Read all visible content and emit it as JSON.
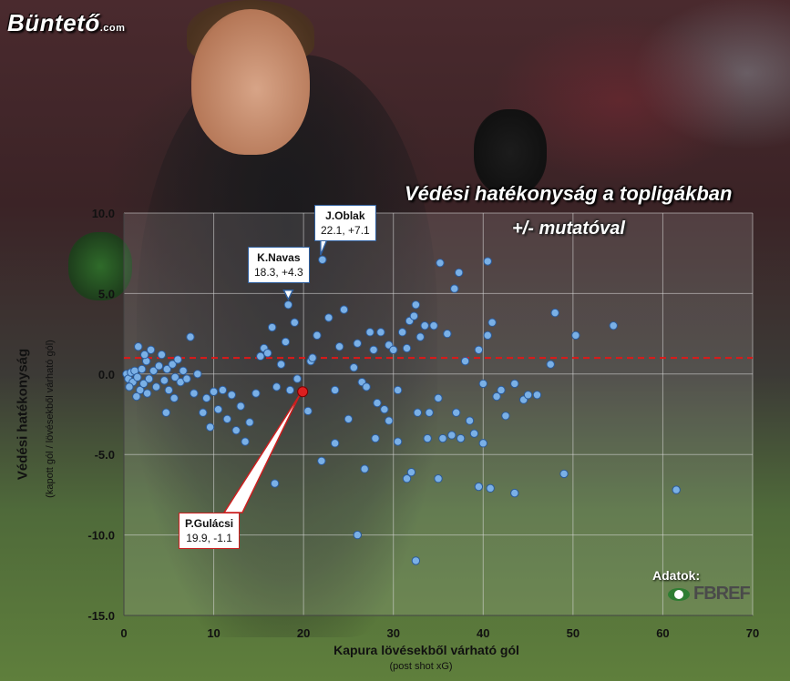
{
  "brand": {
    "logo_text": "Büntető",
    "logo_suffix": ".com"
  },
  "title": {
    "line1": "Védési hatékonyság a topligákban",
    "line2": "+/- mutatóval"
  },
  "source": {
    "label": "Adatok:",
    "name": "FBREF"
  },
  "colors": {
    "point_fill": "#7ab0e6",
    "point_stroke": "#2a5a9a",
    "highlight": "#dd1f1f",
    "reference_line": "#e01818"
  },
  "chart_data": {
    "type": "scatter",
    "xlabel": "Kapura lövésekből várható gól",
    "xlabel_sub": "(post shot xG)",
    "ylabel": "Védési hatékonyság",
    "ylabel_sub": "(kapott gól / lövésekből várható gól)",
    "xlim": [
      0,
      70
    ],
    "ylim": [
      -15,
      10
    ],
    "x_ticks": [
      "0",
      "10",
      "20",
      "30",
      "40",
      "50",
      "60",
      "70"
    ],
    "y_ticks": [
      "10.0",
      "5.0",
      "0.0",
      "-5.0",
      "-10.0",
      "-15.0"
    ],
    "grid": true,
    "reference_line_y": 1.0,
    "annotations": [
      {
        "name": "J.Oblak",
        "label": "22.1, +7.1",
        "x": 22.1,
        "y": 7.1
      },
      {
        "name": "K.Navas",
        "label": "18.3, +4.3",
        "x": 18.3,
        "y": 4.3
      },
      {
        "name": "P.Gulácsi",
        "label": "19.9, -1.1",
        "x": 19.9,
        "y": -1.1,
        "highlight": true
      }
    ],
    "points": [
      [
        0.3,
        0.0
      ],
      [
        0.5,
        -0.3
      ],
      [
        0.8,
        0.1
      ],
      [
        1.0,
        -0.5
      ],
      [
        1.2,
        0.2
      ],
      [
        0.6,
        -0.8
      ],
      [
        1.5,
        -0.2
      ],
      [
        1.8,
        -1.0
      ],
      [
        2.0,
        0.3
      ],
      [
        2.2,
        -0.6
      ],
      [
        1.4,
        -1.4
      ],
      [
        2.5,
        0.8
      ],
      [
        2.8,
        -0.3
      ],
      [
        3.0,
        1.5
      ],
      [
        3.3,
        0.2
      ],
      [
        2.6,
        -1.2
      ],
      [
        1.6,
        1.7
      ],
      [
        2.3,
        1.2
      ],
      [
        3.6,
        -0.8
      ],
      [
        3.9,
        0.5
      ],
      [
        4.2,
        1.2
      ],
      [
        4.5,
        -0.4
      ],
      [
        4.8,
        0.3
      ],
      [
        5.0,
        -1.0
      ],
      [
        5.4,
        0.6
      ],
      [
        5.7,
        -0.2
      ],
      [
        6.0,
        0.9
      ],
      [
        6.3,
        -0.5
      ],
      [
        6.6,
        0.2
      ],
      [
        4.7,
        -2.4
      ],
      [
        5.6,
        -1.5
      ],
      [
        7.0,
        -0.3
      ],
      [
        7.4,
        2.3
      ],
      [
        7.8,
        -1.2
      ],
      [
        8.2,
        0.0
      ],
      [
        8.8,
        -2.4
      ],
      [
        9.2,
        -1.5
      ],
      [
        9.6,
        -3.3
      ],
      [
        10.0,
        -1.1
      ],
      [
        10.5,
        -2.2
      ],
      [
        11.0,
        -1.0
      ],
      [
        11.5,
        -2.8
      ],
      [
        12.0,
        -1.3
      ],
      [
        12.5,
        -3.5
      ],
      [
        13.0,
        -2.0
      ],
      [
        13.5,
        -4.2
      ],
      [
        14.0,
        -3.0
      ],
      [
        14.7,
        -1.2
      ],
      [
        15.2,
        1.1
      ],
      [
        15.6,
        1.6
      ],
      [
        16.0,
        1.3
      ],
      [
        16.5,
        2.9
      ],
      [
        17.0,
        -0.8
      ],
      [
        17.5,
        0.6
      ],
      [
        18.0,
        2.0
      ],
      [
        18.5,
        -1.0
      ],
      [
        19.0,
        3.2
      ],
      [
        19.3,
        -0.3
      ],
      [
        20.5,
        -2.3
      ],
      [
        20.8,
        0.8
      ],
      [
        21.0,
        1.0
      ],
      [
        21.5,
        2.4
      ],
      [
        22.8,
        3.5
      ],
      [
        23.5,
        -1.0
      ],
      [
        24.0,
        1.7
      ],
      [
        24.5,
        4.0
      ],
      [
        25.0,
        -2.8
      ],
      [
        25.6,
        0.4
      ],
      [
        26.0,
        1.9
      ],
      [
        26.5,
        -0.5
      ],
      [
        27.0,
        -0.8
      ],
      [
        27.4,
        2.6
      ],
      [
        27.8,
        1.5
      ],
      [
        28.2,
        -1.8
      ],
      [
        28.6,
        2.6
      ],
      [
        29.0,
        -2.2
      ],
      [
        29.5,
        1.8
      ],
      [
        30.0,
        1.5
      ],
      [
        30.5,
        -1.0
      ],
      [
        31.0,
        2.6
      ],
      [
        31.5,
        1.6
      ],
      [
        31.8,
        3.3
      ],
      [
        32.3,
        3.6
      ],
      [
        32.7,
        -2.4
      ],
      [
        33.0,
        2.3
      ],
      [
        33.5,
        3.0
      ],
      [
        34.0,
        -2.4
      ],
      [
        34.5,
        3.0
      ],
      [
        35.0,
        -1.5
      ],
      [
        35.5,
        -4.0
      ],
      [
        36.0,
        2.5
      ],
      [
        36.5,
        -3.8
      ],
      [
        37.0,
        -2.4
      ],
      [
        37.5,
        -4.0
      ],
      [
        38.0,
        0.8
      ],
      [
        38.5,
        -2.9
      ],
      [
        39.0,
        -3.7
      ],
      [
        39.5,
        1.5
      ],
      [
        40.0,
        -0.6
      ],
      [
        40.5,
        2.4
      ],
      [
        41.0,
        3.2
      ],
      [
        41.5,
        -1.4
      ],
      [
        42.0,
        -1.0
      ],
      [
        42.5,
        -2.6
      ],
      [
        43.5,
        -0.6
      ],
      [
        44.5,
        -1.6
      ],
      [
        45.0,
        -1.3
      ],
      [
        46.0,
        -1.3
      ],
      [
        47.5,
        0.6
      ],
      [
        48.0,
        3.8
      ],
      [
        49.0,
        -6.2
      ],
      [
        50.3,
        2.4
      ],
      [
        54.5,
        3.0
      ],
      [
        61.5,
        -7.2
      ],
      [
        35.2,
        6.9
      ],
      [
        36.8,
        5.3
      ],
      [
        37.3,
        6.3
      ],
      [
        40.5,
        7.0
      ],
      [
        32.5,
        4.3
      ],
      [
        31.5,
        -6.5
      ],
      [
        32.0,
        -6.1
      ],
      [
        35.0,
        -6.5
      ],
      [
        39.5,
        -7.0
      ],
      [
        40.8,
        -7.1
      ],
      [
        43.5,
        -7.4
      ],
      [
        30.5,
        -4.2
      ],
      [
        28.0,
        -4.0
      ],
      [
        26.8,
        -5.9
      ],
      [
        23.5,
        -4.3
      ],
      [
        22.0,
        -5.4
      ],
      [
        16.8,
        -6.8
      ],
      [
        26.0,
        -10.0
      ],
      [
        32.5,
        -11.6
      ],
      [
        40.0,
        -4.3
      ],
      [
        29.5,
        -2.9
      ],
      [
        33.8,
        -4.0
      ]
    ]
  }
}
